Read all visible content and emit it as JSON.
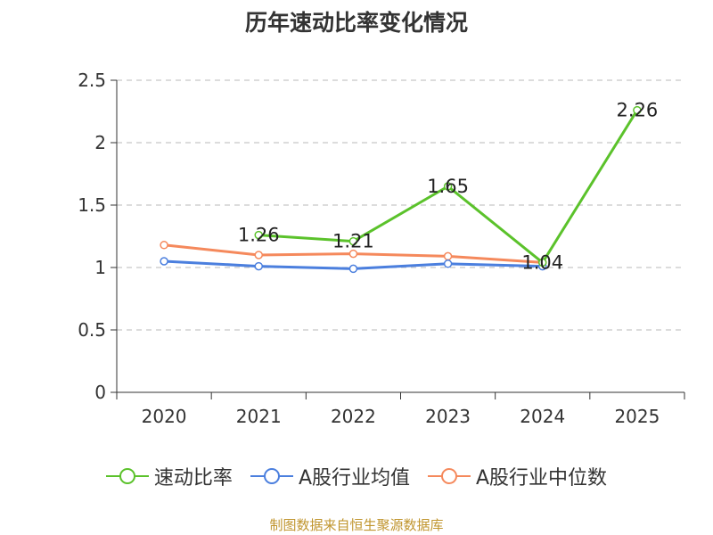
{
  "chart_data": {
    "type": "line",
    "title": "历年速动比率变化情况",
    "categories": [
      "2020",
      "2021",
      "2022",
      "2023",
      "2024",
      "2025"
    ],
    "ylim": [
      0,
      2.5
    ],
    "yticks": [
      "0",
      "0.5",
      "1",
      "1.5",
      "2",
      "2.5"
    ],
    "ytick_values": [
      0,
      0.5,
      1,
      1.5,
      2,
      2.5
    ],
    "grid": true,
    "legend_position": "bottom",
    "series": [
      {
        "name": "速动比率",
        "color": "#5bc22b",
        "values": [
          null,
          1.26,
          1.21,
          1.65,
          1.04,
          2.26
        ],
        "labels": [
          "",
          "1.26",
          "1.21",
          "1.65",
          "1.04",
          "2.26"
        ]
      },
      {
        "name": "A股行业均值",
        "color": "#4b7fde",
        "values": [
          1.05,
          1.01,
          0.99,
          1.03,
          1.01,
          null
        ]
      },
      {
        "name": "A股行业中位数",
        "color": "#f5895c",
        "values": [
          1.18,
          1.1,
          1.11,
          1.09,
          1.04,
          null
        ]
      }
    ]
  },
  "footer": {
    "source": "制图数据来自恒生聚源数据库"
  }
}
